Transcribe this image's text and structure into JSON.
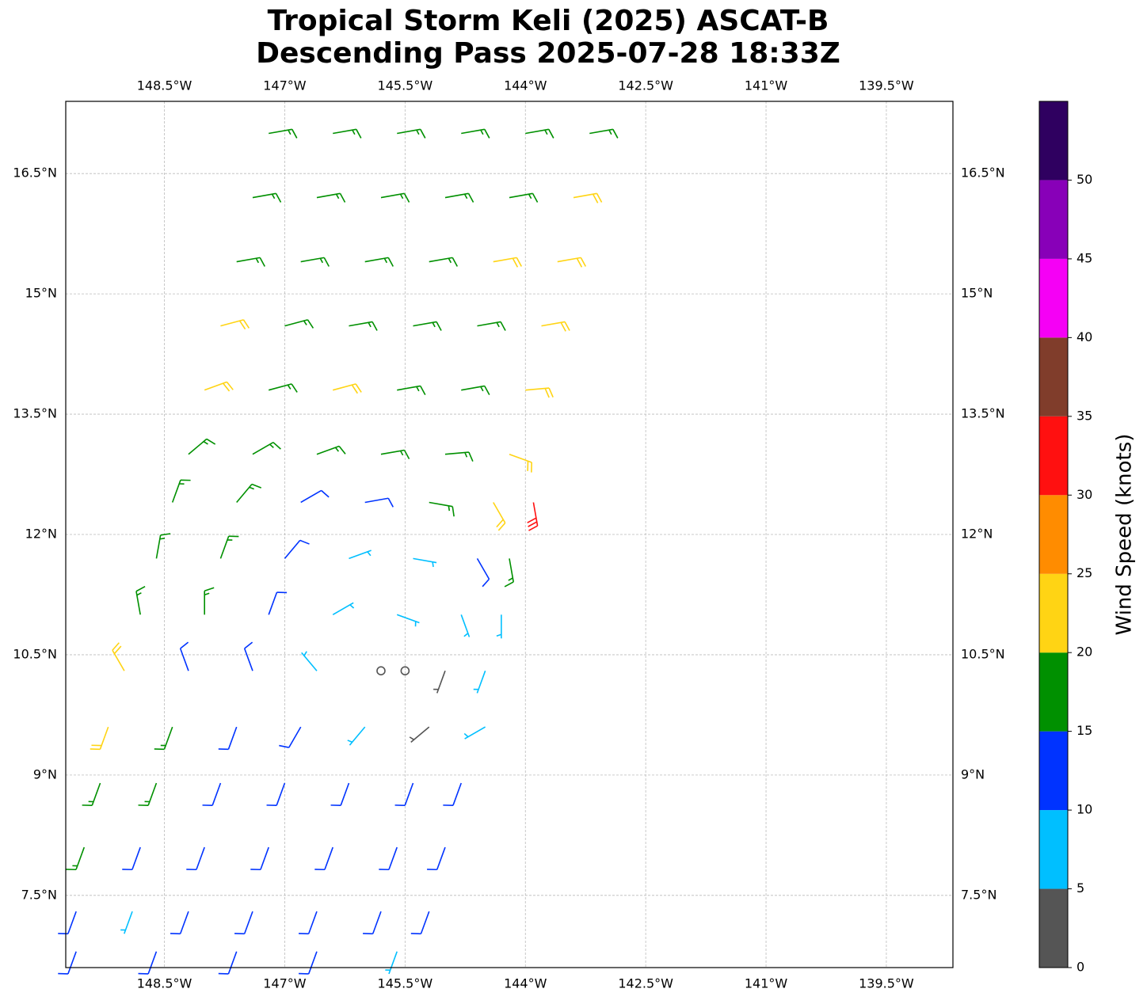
{
  "chart_data": {
    "type": "barbs",
    "title": [
      "Tropical Storm Keli (2025) ASCAT-B",
      "Descending Pass 2025-07-28 18:33Z"
    ],
    "xlim": [
      -149.73,
      -138.67
    ],
    "ylim": [
      6.6,
      17.4
    ],
    "xticks": [
      {
        "value": -148.5,
        "label": "148.5°W"
      },
      {
        "value": -147,
        "label": "147°W"
      },
      {
        "value": -145.5,
        "label": "145.5°W"
      },
      {
        "value": -144,
        "label": "144°W"
      },
      {
        "value": -142.5,
        "label": "142.5°W"
      },
      {
        "value": -141,
        "label": "141°W"
      },
      {
        "value": -139.5,
        "label": "139.5°W"
      }
    ],
    "yticks": [
      {
        "value": 7.5,
        "label": "7.5°N"
      },
      {
        "value": 9,
        "label": "9°N"
      },
      {
        "value": 10.5,
        "label": "10.5°N"
      },
      {
        "value": 12,
        "label": "12°N"
      },
      {
        "value": 13.5,
        "label": "13.5°N"
      },
      {
        "value": 15,
        "label": "15°N"
      },
      {
        "value": 16.5,
        "label": "16.5°N"
      }
    ],
    "grid": true,
    "colorbar": {
      "label": "Wind Speed (knots)",
      "clim": [
        0,
        55
      ],
      "levels": [
        0,
        5,
        10,
        15,
        20,
        25,
        30,
        35,
        40,
        45,
        50,
        55
      ],
      "colors": [
        "#555555",
        "#00bfff",
        "#0033ff",
        "#009000",
        "#ffd414",
        "#ff8c00",
        "#ff1010",
        "#803d2b",
        "#f500f5",
        "#8800b8",
        "#2f0060"
      ],
      "ticks": [
        0,
        5,
        10,
        15,
        20,
        25,
        30,
        35,
        40,
        45,
        50
      ]
    },
    "barbs": {
      "rows": [
        {
          "lat": 17.0,
          "lon": [
            -147.2,
            -146.4,
            -145.6,
            -144.8,
            -144.0,
            -143.2
          ],
          "speed": [
            17,
            17,
            17,
            17,
            17,
            17
          ],
          "direction": [
            80,
            80,
            80,
            80,
            80,
            80
          ]
        },
        {
          "lat": 16.2,
          "lon": [
            -147.4,
            -146.6,
            -145.8,
            -145.0,
            -144.2,
            -143.4
          ],
          "speed": [
            17,
            17,
            17,
            17,
            17,
            22
          ],
          "direction": [
            80,
            80,
            80,
            80,
            80,
            80
          ]
        },
        {
          "lat": 15.4,
          "lon": [
            -147.6,
            -146.8,
            -146.0,
            -145.2,
            -144.4,
            -143.6
          ],
          "speed": [
            17,
            17,
            17,
            17,
            22,
            22
          ],
          "direction": [
            80,
            80,
            80,
            80,
            80,
            80
          ]
        },
        {
          "lat": 14.6,
          "lon": [
            -147.8,
            -147.0,
            -146.2,
            -145.4,
            -144.6,
            -143.8
          ],
          "speed": [
            22,
            17,
            17,
            17,
            17,
            22
          ],
          "direction": [
            75,
            75,
            80,
            80,
            80,
            80
          ]
        },
        {
          "lat": 13.8,
          "lon": [
            -148.0,
            -147.2,
            -146.4,
            -145.6,
            -144.8,
            -144.0
          ],
          "speed": [
            22,
            17,
            22,
            17,
            17,
            22
          ],
          "direction": [
            70,
            75,
            75,
            80,
            80,
            85
          ]
        },
        {
          "lat": 13.0,
          "lon": [
            -148.2,
            -147.4,
            -146.6,
            -145.8,
            -145.0,
            -144.2
          ],
          "speed": [
            17,
            17,
            17,
            17,
            17,
            22
          ],
          "direction": [
            50,
            60,
            70,
            80,
            85,
            110
          ]
        },
        {
          "lat": 12.4,
          "lon": [
            -148.4,
            -147.6,
            -146.8,
            -146.0,
            -145.2,
            -144.4,
            -143.9
          ],
          "speed": [
            17,
            17,
            12,
            12,
            17,
            22,
            32
          ],
          "direction": [
            20,
            40,
            60,
            80,
            100,
            150,
            170
          ]
        },
        {
          "lat": 11.7,
          "lon": [
            -148.6,
            -147.8,
            -147.0,
            -146.2,
            -145.4,
            -144.6,
            -144.2
          ],
          "speed": [
            17,
            17,
            12,
            7,
            7,
            12,
            17
          ],
          "direction": [
            10,
            20,
            40,
            70,
            100,
            150,
            170
          ]
        },
        {
          "lat": 11.0,
          "lon": [
            -148.8,
            -148.0,
            -147.2,
            -146.4,
            -145.6,
            -144.8,
            -144.3
          ],
          "speed": [
            17,
            17,
            12,
            7,
            7,
            7,
            7
          ],
          "direction": [
            350,
            0,
            20,
            60,
            110,
            160,
            180
          ]
        },
        {
          "lat": 10.3,
          "lon": [
            -149.0,
            -148.2,
            -147.4,
            -146.6,
            -145.8,
            -145.5,
            -145.0,
            -144.5
          ],
          "speed": [
            22,
            12,
            12,
            7,
            2,
            2,
            4,
            7
          ],
          "direction": [
            330,
            340,
            340,
            320,
            0,
            0,
            200,
            200
          ]
        },
        {
          "lat": 9.6,
          "lon": [
            -149.2,
            -148.4,
            -147.6,
            -146.8,
            -146.0,
            -145.2,
            -144.5
          ],
          "speed": [
            22,
            17,
            12,
            12,
            7,
            4,
            7
          ],
          "direction": [
            200,
            200,
            200,
            210,
            220,
            230,
            240
          ]
        },
        {
          "lat": 8.9,
          "lon": [
            -149.3,
            -148.6,
            -147.8,
            -147.0,
            -146.2,
            -145.4,
            -144.8
          ],
          "speed": [
            17,
            17,
            12,
            12,
            12,
            12,
            12
          ],
          "direction": [
            200,
            200,
            200,
            200,
            200,
            200,
            200
          ]
        },
        {
          "lat": 8.1,
          "lon": [
            -149.5,
            -148.8,
            -148.0,
            -147.2,
            -146.4,
            -145.6,
            -145.0
          ],
          "speed": [
            17,
            12,
            12,
            12,
            12,
            12,
            12
          ],
          "direction": [
            200,
            200,
            200,
            200,
            200,
            200,
            200
          ]
        },
        {
          "lat": 7.3,
          "lon": [
            -149.6,
            -148.9,
            -148.2,
            -147.4,
            -146.6,
            -145.8,
            -145.2
          ],
          "speed": [
            12,
            7,
            12,
            12,
            12,
            12,
            12
          ],
          "direction": [
            200,
            200,
            200,
            200,
            200,
            200,
            200
          ]
        },
        {
          "lat": 6.8,
          "lon": [
            -149.6,
            -148.6,
            -147.6,
            -146.6,
            -145.6
          ],
          "speed": [
            12,
            12,
            12,
            12,
            7
          ],
          "direction": [
            200,
            200,
            200,
            200,
            200
          ]
        }
      ]
    }
  }
}
